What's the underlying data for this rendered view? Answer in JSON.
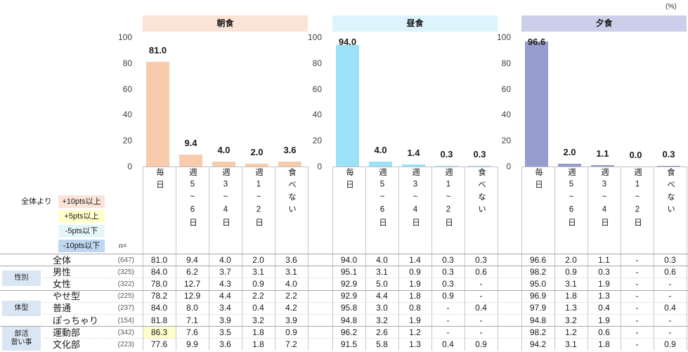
{
  "unit_label": "(%)",
  "legend": {
    "title": "全体より",
    "items": [
      {
        "label": "+10pts以上",
        "color": "#fbe4d5"
      },
      {
        "label": "+5pts以上",
        "color": "#ffffcc"
      },
      {
        "label": "-5pts以下",
        "color": "#e5f6fb"
      },
      {
        "label": "-10pts以下",
        "color": "#bed6ee"
      }
    ]
  },
  "chart_data": [
    {
      "type": "bar",
      "title": "朝食",
      "categories": [
        "毎日",
        "週5~6日",
        "週3~4日",
        "週1~2日",
        "食べない"
      ],
      "values": [
        81.0,
        9.4,
        4.0,
        2.0,
        3.6
      ],
      "ylim": [
        0,
        100
      ],
      "yticks": [
        0,
        20,
        40,
        60,
        80,
        100
      ],
      "bar_color": "#f8cbad",
      "header_color": "#fbe4d5"
    },
    {
      "type": "bar",
      "title": "昼食",
      "categories": [
        "毎日",
        "週5~6日",
        "週3~4日",
        "週1~2日",
        "食べない"
      ],
      "values": [
        94.0,
        4.0,
        1.4,
        0.3,
        0.3
      ],
      "ylim": [
        0,
        100
      ],
      "yticks": [
        0,
        20,
        40,
        60,
        80,
        100
      ],
      "bar_color": "#9be2f8",
      "header_color": "#ddf4fc"
    },
    {
      "type": "bar",
      "title": "夕食",
      "categories": [
        "毎日",
        "週5~6日",
        "週3~4日",
        "週1~2日",
        "食べない"
      ],
      "values": [
        96.6,
        2.0,
        1.1,
        0.0,
        0.3
      ],
      "ylim": [
        0,
        100
      ],
      "yticks": [
        0,
        20,
        40,
        60,
        80,
        100
      ],
      "bar_color": "#969cce",
      "header_color": "#cccfea"
    }
  ],
  "table": {
    "n_label": "n=",
    "group_label_color": "#dae6f3",
    "total": {
      "label": "全体",
      "n": "(647)",
      "values": [
        [
          "81.0",
          "9.4",
          "4.0",
          "2.0",
          "3.6"
        ],
        [
          "94.0",
          "4.0",
          "1.4",
          "0.3",
          "0.3"
        ],
        [
          "96.6",
          "2.0",
          "1.1",
          "-",
          "0.3"
        ]
      ]
    },
    "groups": [
      {
        "label": "性別",
        "rows": [
          {
            "label": "男性",
            "n": "(325)",
            "values": [
              [
                "84.0",
                "6.2",
                "3.7",
                "3.1",
                "3.1"
              ],
              [
                "95.1",
                "3.1",
                "0.9",
                "0.3",
                "0.6"
              ],
              [
                "98.2",
                "0.9",
                "0.3",
                "-",
                "0.6"
              ]
            ]
          },
          {
            "label": "女性",
            "n": "(322)",
            "values": [
              [
                "78.0",
                "12.7",
                "4.3",
                "0.9",
                "4.0"
              ],
              [
                "92.9",
                "5.0",
                "1.9",
                "0.3",
                "-"
              ],
              [
                "95.0",
                "3.1",
                "1.9",
                "-",
                "-"
              ]
            ]
          }
        ]
      },
      {
        "label": "体型",
        "rows": [
          {
            "label": "やせ型",
            "n": "(225)",
            "values": [
              [
                "78.2",
                "12.9",
                "4.4",
                "2.2",
                "2.2"
              ],
              [
                "92.9",
                "4.4",
                "1.8",
                "0.9",
                "-"
              ],
              [
                "96.9",
                "1.8",
                "1.3",
                "-",
                "-"
              ]
            ]
          },
          {
            "label": "普通",
            "n": "(237)",
            "values": [
              [
                "84.0",
                "8.0",
                "3.4",
                "0.4",
                "4.2"
              ],
              [
                "95.8",
                "3.0",
                "0.8",
                "-",
                "0.4"
              ],
              [
                "97.9",
                "1.3",
                "0.4",
                "-",
                "0.4"
              ]
            ]
          },
          {
            "label": "ぽっちゃり",
            "n": "(154)",
            "values": [
              [
                "81.8",
                "7.1",
                "3.9",
                "3.2",
                "3.9"
              ],
              [
                "94.8",
                "3.2",
                "1.9",
                "-",
                "-"
              ],
              [
                "94.8",
                "3.2",
                "1.9",
                "-",
                "-"
              ]
            ]
          }
        ]
      },
      {
        "label": "部活\n習い事",
        "rows": [
          {
            "label": "運動部",
            "n": "(342)",
            "values": [
              [
                "86.3",
                "7.6",
                "3.5",
                "1.8",
                "0.9"
              ],
              [
                "96.2",
                "2.6",
                "1.2",
                "-",
                "-"
              ],
              [
                "98.2",
                "1.2",
                "0.6",
                "-",
                "-"
              ]
            ]
          },
          {
            "label": "文化部",
            "n": "(223)",
            "values": [
              [
                "77.6",
                "9.9",
                "3.6",
                "1.8",
                "7.2"
              ],
              [
                "91.5",
                "5.8",
                "1.3",
                "0.4",
                "0.9"
              ],
              [
                "94.2",
                "3.1",
                "1.8",
                "-",
                "0.9"
              ]
            ]
          }
        ]
      }
    ],
    "highlights": [
      {
        "row": 6,
        "meal": 0,
        "category": 0,
        "legend_item": 1
      }
    ]
  }
}
